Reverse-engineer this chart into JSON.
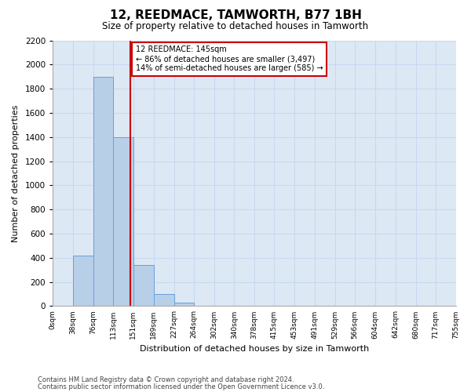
{
  "title": "12, REEDMACE, TAMWORTH, B77 1BH",
  "subtitle": "Size of property relative to detached houses in Tamworth",
  "xlabel": "Distribution of detached houses by size in Tamworth",
  "ylabel": "Number of detached properties",
  "footer_line1": "Contains HM Land Registry data © Crown copyright and database right 2024.",
  "footer_line2": "Contains public sector information licensed under the Open Government Licence v3.0.",
  "bin_edges": [
    0,
    38,
    76,
    113,
    151,
    189,
    227,
    264,
    302,
    340,
    378,
    415,
    453,
    491,
    529,
    566,
    604,
    642,
    680,
    717,
    755
  ],
  "bar_heights": [
    0,
    420,
    1900,
    1400,
    340,
    100,
    30,
    0,
    0,
    0,
    0,
    0,
    0,
    0,
    0,
    0,
    0,
    0,
    0,
    0
  ],
  "bar_color": "#b8cfe8",
  "bar_edgecolor": "#6a9fd8",
  "grid_color": "#c8d8ee",
  "background_color": "#dde8f5",
  "vline_x": 145,
  "vline_color": "#cc0000",
  "annotation_text": "12 REEDMACE: 145sqm\n← 86% of detached houses are smaller (3,497)\n14% of semi-detached houses are larger (585) →",
  "annotation_box_facecolor": "#ffffff",
  "annotation_box_edgecolor": "#cc0000",
  "ylim": [
    0,
    2200
  ],
  "yticks": [
    0,
    200,
    400,
    600,
    800,
    1000,
    1200,
    1400,
    1600,
    1800,
    2000,
    2200
  ],
  "tick_labels": [
    "0sqm",
    "38sqm",
    "76sqm",
    "113sqm",
    "151sqm",
    "189sqm",
    "227sqm",
    "264sqm",
    "302sqm",
    "340sqm",
    "378sqm",
    "415sqm",
    "453sqm",
    "491sqm",
    "529sqm",
    "566sqm",
    "604sqm",
    "642sqm",
    "680sqm",
    "717sqm",
    "755sqm"
  ]
}
